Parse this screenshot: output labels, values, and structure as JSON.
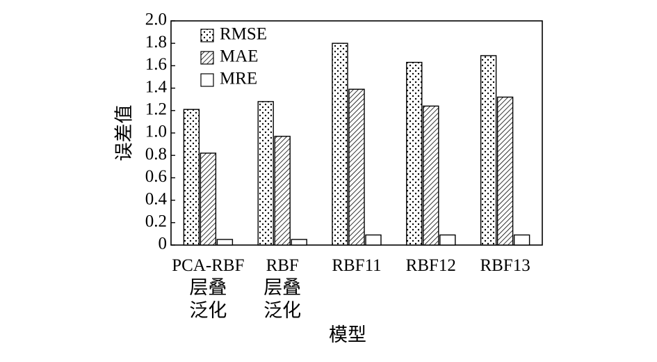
{
  "chart_data": {
    "type": "bar",
    "xlabel": "模型",
    "ylabel": "误差值",
    "ylim": [
      0,
      2.0
    ],
    "yticks": [
      "0",
      "0.2",
      "0.4",
      "0.6",
      "0.8",
      "1.0",
      "1.2",
      "1.4",
      "1.6",
      "1.8",
      "2.0"
    ],
    "categories": [
      [
        "PCA-RBF",
        "层叠",
        "泛化"
      ],
      [
        "RBF",
        "层叠",
        "泛化"
      ],
      [
        "RBF11"
      ],
      [
        "RBF12"
      ],
      [
        "RBF13"
      ]
    ],
    "series": [
      {
        "name": "RMSE",
        "pattern": "dots",
        "values": [
          1.21,
          1.28,
          1.8,
          1.63,
          1.69
        ]
      },
      {
        "name": "MAE",
        "pattern": "hatch",
        "values": [
          0.82,
          0.97,
          1.39,
          1.24,
          1.32
        ]
      },
      {
        "name": "MRE",
        "pattern": "none",
        "values": [
          0.05,
          0.05,
          0.09,
          0.09,
          0.09
        ]
      }
    ],
    "legend_position": "top-left",
    "grid": false
  }
}
